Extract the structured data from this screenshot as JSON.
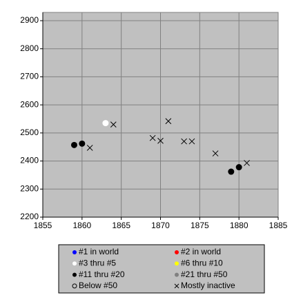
{
  "chart_data": {
    "type": "scatter",
    "xlim": [
      1855,
      1885
    ],
    "xticks": [
      1855,
      1860,
      1865,
      1870,
      1875,
      1880,
      1885
    ],
    "ylim": [
      2200,
      2900
    ],
    "yticks": [
      2200,
      2300,
      2400,
      2500,
      2600,
      2700,
      2800,
      2900
    ],
    "grid": true,
    "legend": "bottom",
    "series": [
      {
        "name": "#1 in world",
        "color": "#0000ff",
        "marker": "circle",
        "x": [],
        "values": []
      },
      {
        "name": "#2 in world",
        "color": "#ff0000",
        "marker": "circle",
        "x": [],
        "values": []
      },
      {
        "name": "#3 thru #5",
        "color": "#ffffff",
        "marker": "circle",
        "x": [
          1863
        ],
        "values": [
          2535
        ]
      },
      {
        "name": "#6 thru #10",
        "color": "#ffff00",
        "marker": "circle",
        "x": [],
        "values": []
      },
      {
        "name": "#11 thru #20",
        "color": "#000000",
        "marker": "circle",
        "x": [
          1859,
          1860,
          1879,
          1880
        ],
        "values": [
          2457,
          2462,
          2362,
          2378
        ]
      },
      {
        "name": "#21 thru #50",
        "color": "#808080",
        "marker": "circle",
        "x": [],
        "values": []
      },
      {
        "name": "Below #50",
        "color": "#000000",
        "marker": "open-circle",
        "x": [],
        "values": []
      },
      {
        "name": "Mostly inactive",
        "color": "#000000",
        "marker": "x",
        "x": [
          1861,
          1864,
          1869,
          1870,
          1871,
          1873,
          1874,
          1877,
          1881
        ],
        "values": [
          2447,
          2530,
          2482,
          2472,
          2542,
          2470,
          2470,
          2427,
          2393
        ]
      }
    ]
  }
}
